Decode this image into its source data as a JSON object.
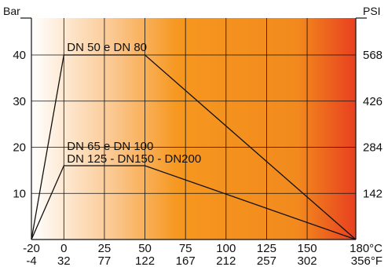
{
  "chart_data": {
    "type": "line",
    "x_unit_top": "°C",
    "x_unit_bottom": "°F",
    "y_left_label": "Bar",
    "y_right_label": "PSI",
    "xlim": [
      -20,
      180
    ],
    "ylim": [
      0,
      48
    ],
    "x_ticks": [
      {
        "c": -20,
        "c_label": "-20",
        "f_label": "-4"
      },
      {
        "c": 0,
        "c_label": "0",
        "f_label": "32"
      },
      {
        "c": 25,
        "c_label": "25",
        "f_label": "77"
      },
      {
        "c": 50,
        "c_label": "50",
        "f_label": "122"
      },
      {
        "c": 75,
        "c_label": "75",
        "f_label": "167"
      },
      {
        "c": 100,
        "c_label": "100",
        "f_label": "212"
      },
      {
        "c": 125,
        "c_label": "125",
        "f_label": "257"
      },
      {
        "c": 150,
        "c_label": "150",
        "f_label": "302"
      },
      {
        "c": 180,
        "c_label": "180°C",
        "f_label": "356°F"
      }
    ],
    "y_ticks_left": [
      {
        "v": 10,
        "label": "10"
      },
      {
        "v": 20,
        "label": "20"
      },
      {
        "v": 30,
        "label": "30"
      },
      {
        "v": 40,
        "label": "40"
      }
    ],
    "y_ticks_right": [
      {
        "v": 10,
        "label": "142"
      },
      {
        "v": 20,
        "label": "284"
      },
      {
        "v": 30,
        "label": "426"
      },
      {
        "v": 40,
        "label": "568"
      }
    ],
    "grid": true,
    "background": "gradient light-to-dark orange left to right",
    "series": [
      {
        "name": "DN 50 e DN 80",
        "points": [
          [
            -20,
            0
          ],
          [
            0,
            40
          ],
          [
            50,
            40
          ],
          [
            180,
            0
          ]
        ]
      },
      {
        "name": "DN 65 e DN 100",
        "name2": "DN 125 - DN150 - DN200",
        "points": [
          [
            -20,
            0
          ],
          [
            0,
            16
          ],
          [
            50,
            16
          ],
          [
            180,
            0
          ]
        ]
      }
    ]
  },
  "colors": {
    "gradient_start": "#ffffff",
    "gradient_mid1": "#fbc891",
    "gradient_mid2": "#f6971f",
    "gradient_mid3": "#f28a1e",
    "gradient_end": "#e8401f",
    "line": "#111111"
  }
}
